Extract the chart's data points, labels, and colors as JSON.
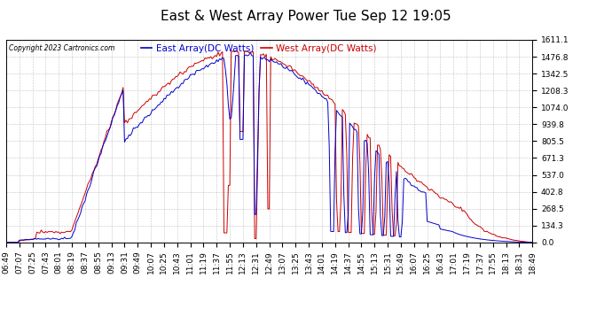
{
  "title": "East & West Array Power Tue Sep 12 19:05",
  "copyright": "Copyright 2023 Cartronics.com",
  "legend_east": "East Array(DC Watts)",
  "legend_west": "West Array(DC Watts)",
  "east_color": "#0000cc",
  "west_color": "#cc0000",
  "bg_color": "#ffffff",
  "grid_color": "#999999",
  "yticks": [
    0.0,
    134.3,
    268.5,
    402.8,
    537.0,
    671.3,
    805.5,
    939.8,
    1074.0,
    1208.3,
    1342.5,
    1476.8,
    1611.1
  ],
  "ymax": 1611.1,
  "title_fontsize": 11,
  "label_fontsize": 7.5,
  "tick_fontsize": 6.5,
  "xtick_labels": [
    "06:49",
    "07:07",
    "07:25",
    "07:43",
    "08:01",
    "08:19",
    "08:37",
    "08:55",
    "09:13",
    "09:31",
    "09:49",
    "10:07",
    "10:25",
    "10:43",
    "11:01",
    "11:19",
    "11:37",
    "11:55",
    "12:13",
    "12:31",
    "12:49",
    "13:07",
    "13:25",
    "13:43",
    "14:01",
    "14:19",
    "14:37",
    "14:55",
    "15:13",
    "15:31",
    "15:49",
    "16:07",
    "16:25",
    "16:43",
    "17:01",
    "17:19",
    "17:37",
    "17:55",
    "18:13",
    "18:31",
    "18:49"
  ]
}
